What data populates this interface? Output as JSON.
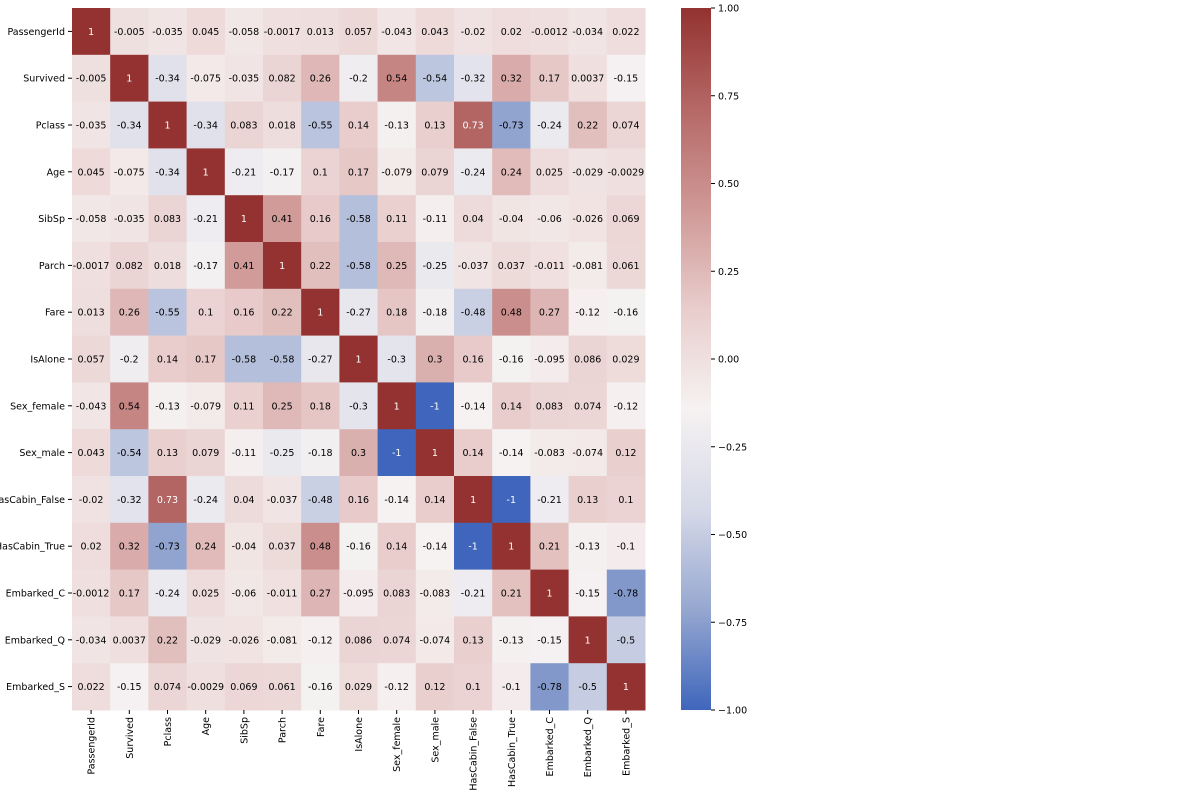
{
  "chart_data": {
    "type": "heatmap",
    "labels": [
      "PassengerId",
      "Survived",
      "Pclass",
      "Age",
      "SibSp",
      "Parch",
      "Fare",
      "IsAlone",
      "Sex_female",
      "Sex_male",
      "HasCabin_False",
      "HasCabin_True",
      "Embarked_C",
      "Embarked_Q",
      "Embarked_S"
    ],
    "values": [
      [
        1,
        -0.005,
        -0.035,
        0.045,
        -0.058,
        -0.0017,
        0.013,
        0.057,
        -0.043,
        0.043,
        -0.02,
        0.02,
        -0.0012,
        -0.034,
        0.022
      ],
      [
        -0.005,
        1,
        -0.34,
        -0.075,
        -0.035,
        0.082,
        0.26,
        -0.2,
        0.54,
        -0.54,
        -0.32,
        0.32,
        0.17,
        0.0037,
        -0.15
      ],
      [
        -0.035,
        -0.34,
        1,
        -0.34,
        0.083,
        0.018,
        -0.55,
        0.14,
        -0.13,
        0.13,
        0.73,
        -0.73,
        -0.24,
        0.22,
        0.074
      ],
      [
        0.045,
        -0.075,
        -0.34,
        1,
        -0.21,
        -0.17,
        0.1,
        0.17,
        -0.079,
        0.079,
        -0.24,
        0.24,
        0.025,
        -0.029,
        -0.0029
      ],
      [
        -0.058,
        -0.035,
        0.083,
        -0.21,
        1,
        0.41,
        0.16,
        -0.58,
        0.11,
        -0.11,
        0.04,
        -0.04,
        -0.06,
        -0.026,
        0.069
      ],
      [
        -0.0017,
        0.082,
        0.018,
        -0.17,
        0.41,
        1,
        0.22,
        -0.58,
        0.25,
        -0.25,
        -0.037,
        0.037,
        -0.011,
        -0.081,
        0.061
      ],
      [
        0.013,
        0.26,
        -0.55,
        0.1,
        0.16,
        0.22,
        1,
        -0.27,
        0.18,
        -0.18,
        -0.48,
        0.48,
        0.27,
        -0.12,
        -0.16
      ],
      [
        0.057,
        -0.2,
        0.14,
        0.17,
        -0.58,
        -0.58,
        -0.27,
        1,
        -0.3,
        0.3,
        0.16,
        -0.16,
        -0.095,
        0.086,
        0.029
      ],
      [
        -0.043,
        0.54,
        -0.13,
        -0.079,
        0.11,
        0.25,
        0.18,
        -0.3,
        1,
        -1,
        -0.14,
        0.14,
        0.083,
        0.074,
        -0.12
      ],
      [
        0.043,
        -0.54,
        0.13,
        0.079,
        -0.11,
        -0.25,
        -0.18,
        0.3,
        -1,
        1,
        0.14,
        -0.14,
        -0.083,
        -0.074,
        0.12
      ],
      [
        -0.02,
        -0.32,
        0.73,
        -0.24,
        0.04,
        -0.037,
        -0.48,
        0.16,
        -0.14,
        0.14,
        1,
        -1,
        -0.21,
        0.13,
        0.1
      ],
      [
        0.02,
        0.32,
        -0.73,
        0.24,
        -0.04,
        0.037,
        0.48,
        -0.16,
        0.14,
        -0.14,
        -1,
        1,
        0.21,
        -0.13,
        -0.1
      ],
      [
        -0.0012,
        0.17,
        -0.24,
        0.025,
        -0.06,
        -0.011,
        0.27,
        -0.095,
        0.083,
        -0.083,
        -0.21,
        0.21,
        1,
        -0.15,
        -0.78
      ],
      [
        -0.034,
        0.0037,
        0.22,
        -0.029,
        -0.026,
        -0.081,
        -0.12,
        0.086,
        0.074,
        -0.074,
        0.13,
        -0.13,
        -0.15,
        1,
        -0.5
      ],
      [
        0.022,
        -0.15,
        0.074,
        -0.0029,
        0.069,
        0.061,
        -0.16,
        0.029,
        -0.12,
        0.12,
        0.1,
        -0.1,
        -0.78,
        -0.5,
        1
      ]
    ],
    "clim": [
      -1,
      1
    ],
    "colormap": [
      "#3f66bc",
      "#96a7d0",
      "#d6d9e8",
      "#f6f2f2",
      "#e8cdcc",
      "#cf9896",
      "#b56866",
      "#933230"
    ],
    "cticks": [
      {
        "value": 1,
        "label": "1.00"
      },
      {
        "value": 0.75,
        "label": "0.75"
      },
      {
        "value": 0.5,
        "label": "0.50"
      },
      {
        "value": 0.25,
        "label": "0.25"
      },
      {
        "value": 0,
        "label": "0.00"
      },
      {
        "value": -0.25,
        "label": "−0.25"
      },
      {
        "value": -0.5,
        "label": "−0.50"
      },
      {
        "value": -0.75,
        "label": "−0.75"
      },
      {
        "value": -1,
        "label": "−1.00"
      }
    ]
  }
}
